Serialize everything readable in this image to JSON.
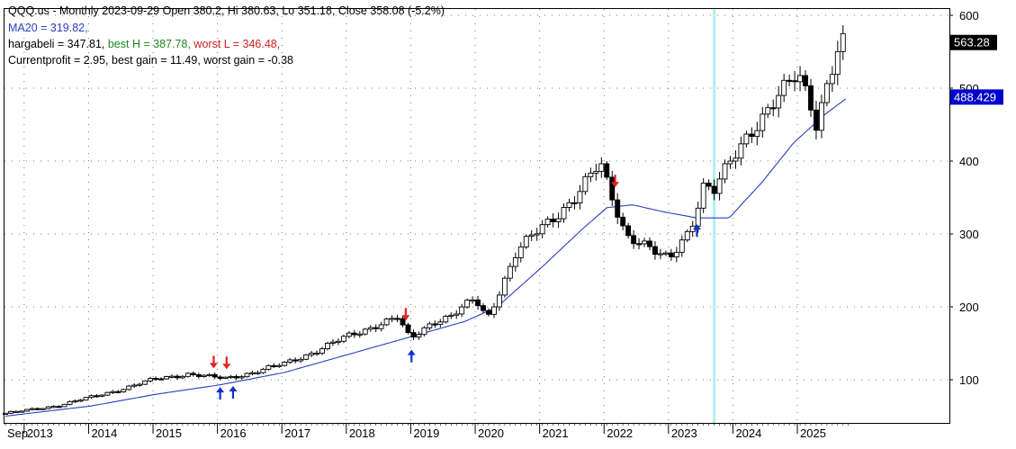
{
  "header": {
    "line1": "QQQ.us - Monthly 2023-09-29 Open 380.2, Hi 380.63, Lo 351.18, Close 358.08 (-5.2%)",
    "ma_label": "MA20 = 319.82,",
    "hargabeli_label": "hargabeli = 347.81, ",
    "best_h_label": "best H = 387.78, ",
    "worst_l_label": "worst L = 346.48,",
    "profit_label": "Currentprofit  = 2.95, best gain = 11.49, worst gain = -0.38"
  },
  "colors": {
    "ma_line": "#2a3fbf",
    "best_h": "#1e8a1e",
    "worst_l": "#cc2020",
    "cursor_line": "#aef0f5",
    "sell_arrow": "#e02020",
    "buy_arrow": "#1030d0",
    "price_badge": "#000000",
    "ma_badge": "#0000cc"
  },
  "chart_data": {
    "type": "candlestick",
    "title": "QQQ.us - Monthly",
    "symbol": "QQQ.us",
    "timeframe": "Monthly",
    "y_ticks": [
      100,
      200,
      300,
      400,
      500,
      600
    ],
    "ylim": [
      50,
      610
    ],
    "x_tick_labels": [
      "Sep",
      "2013",
      "2014",
      "2015",
      "2016",
      "2017",
      "2018",
      "2019",
      "2020",
      "2021",
      "2022",
      "2023",
      "2024",
      "2025"
    ],
    "x_tick_months": [
      2012.667,
      2013.0,
      2014.0,
      2015.0,
      2016.0,
      2017.0,
      2018.0,
      2019.0,
      2020.0,
      2021.0,
      2022.0,
      2023.0,
      2024.0,
      2025.0
    ],
    "last_price_label": "563.28",
    "last_price": 563.28,
    "ma_last_label": "488.429",
    "ma_last": 488.429,
    "grid": true,
    "cursor_date": 2023.667,
    "close_anchors": [
      [
        2012.667,
        54
      ],
      [
        2013.0,
        58
      ],
      [
        2013.5,
        65
      ],
      [
        2014.0,
        76
      ],
      [
        2014.5,
        88
      ],
      [
        2015.0,
        101
      ],
      [
        2015.5,
        108
      ],
      [
        2015.9,
        103
      ],
      [
        2016.1,
        102
      ],
      [
        2016.5,
        110
      ],
      [
        2017.0,
        122
      ],
      [
        2017.5,
        140
      ],
      [
        2018.0,
        160
      ],
      [
        2018.5,
        178
      ],
      [
        2018.75,
        185
      ],
      [
        2018.95,
        155
      ],
      [
        2019.3,
        180
      ],
      [
        2019.6,
        188
      ],
      [
        2019.95,
        210
      ],
      [
        2020.15,
        185
      ],
      [
        2020.6,
        275
      ],
      [
        2020.95,
        305
      ],
      [
        2021.5,
        350
      ],
      [
        2021.9,
        395
      ],
      [
        2022.0,
        370
      ],
      [
        2022.3,
        300
      ],
      [
        2022.5,
        290
      ],
      [
        2022.8,
        270
      ],
      [
        2022.97,
        265
      ],
      [
        2023.3,
        310
      ],
      [
        2023.5,
        365
      ],
      [
        2023.67,
        358
      ],
      [
        2023.9,
        395
      ],
      [
        2024.2,
        440
      ],
      [
        2024.5,
        470
      ],
      [
        2024.8,
        500
      ],
      [
        2024.97,
        520
      ],
      [
        2025.15,
        485
      ],
      [
        2025.25,
        455
      ],
      [
        2025.4,
        500
      ],
      [
        2025.6,
        555
      ],
      [
        2025.75,
        563
      ]
    ],
    "ma20_anchors": [
      [
        2012.667,
        50
      ],
      [
        2014.0,
        64
      ],
      [
        2015.0,
        80
      ],
      [
        2016.0,
        93
      ],
      [
        2017.0,
        110
      ],
      [
        2018.0,
        135
      ],
      [
        2019.0,
        160
      ],
      [
        2019.8,
        180
      ],
      [
        2020.3,
        200
      ],
      [
        2021.0,
        255
      ],
      [
        2021.6,
        305
      ],
      [
        2022.0,
        336
      ],
      [
        2022.4,
        340
      ],
      [
        2022.9,
        330
      ],
      [
        2023.4,
        322
      ],
      [
        2023.9,
        322
      ],
      [
        2024.4,
        370
      ],
      [
        2024.9,
        425
      ],
      [
        2025.4,
        465
      ],
      [
        2025.75,
        488
      ]
    ],
    "sell_signals": [
      2015.9,
      2016.1,
      2018.88,
      2022.13
    ],
    "buy_signals": [
      2016.0,
      2016.2,
      2018.97,
      2023.4
    ]
  }
}
